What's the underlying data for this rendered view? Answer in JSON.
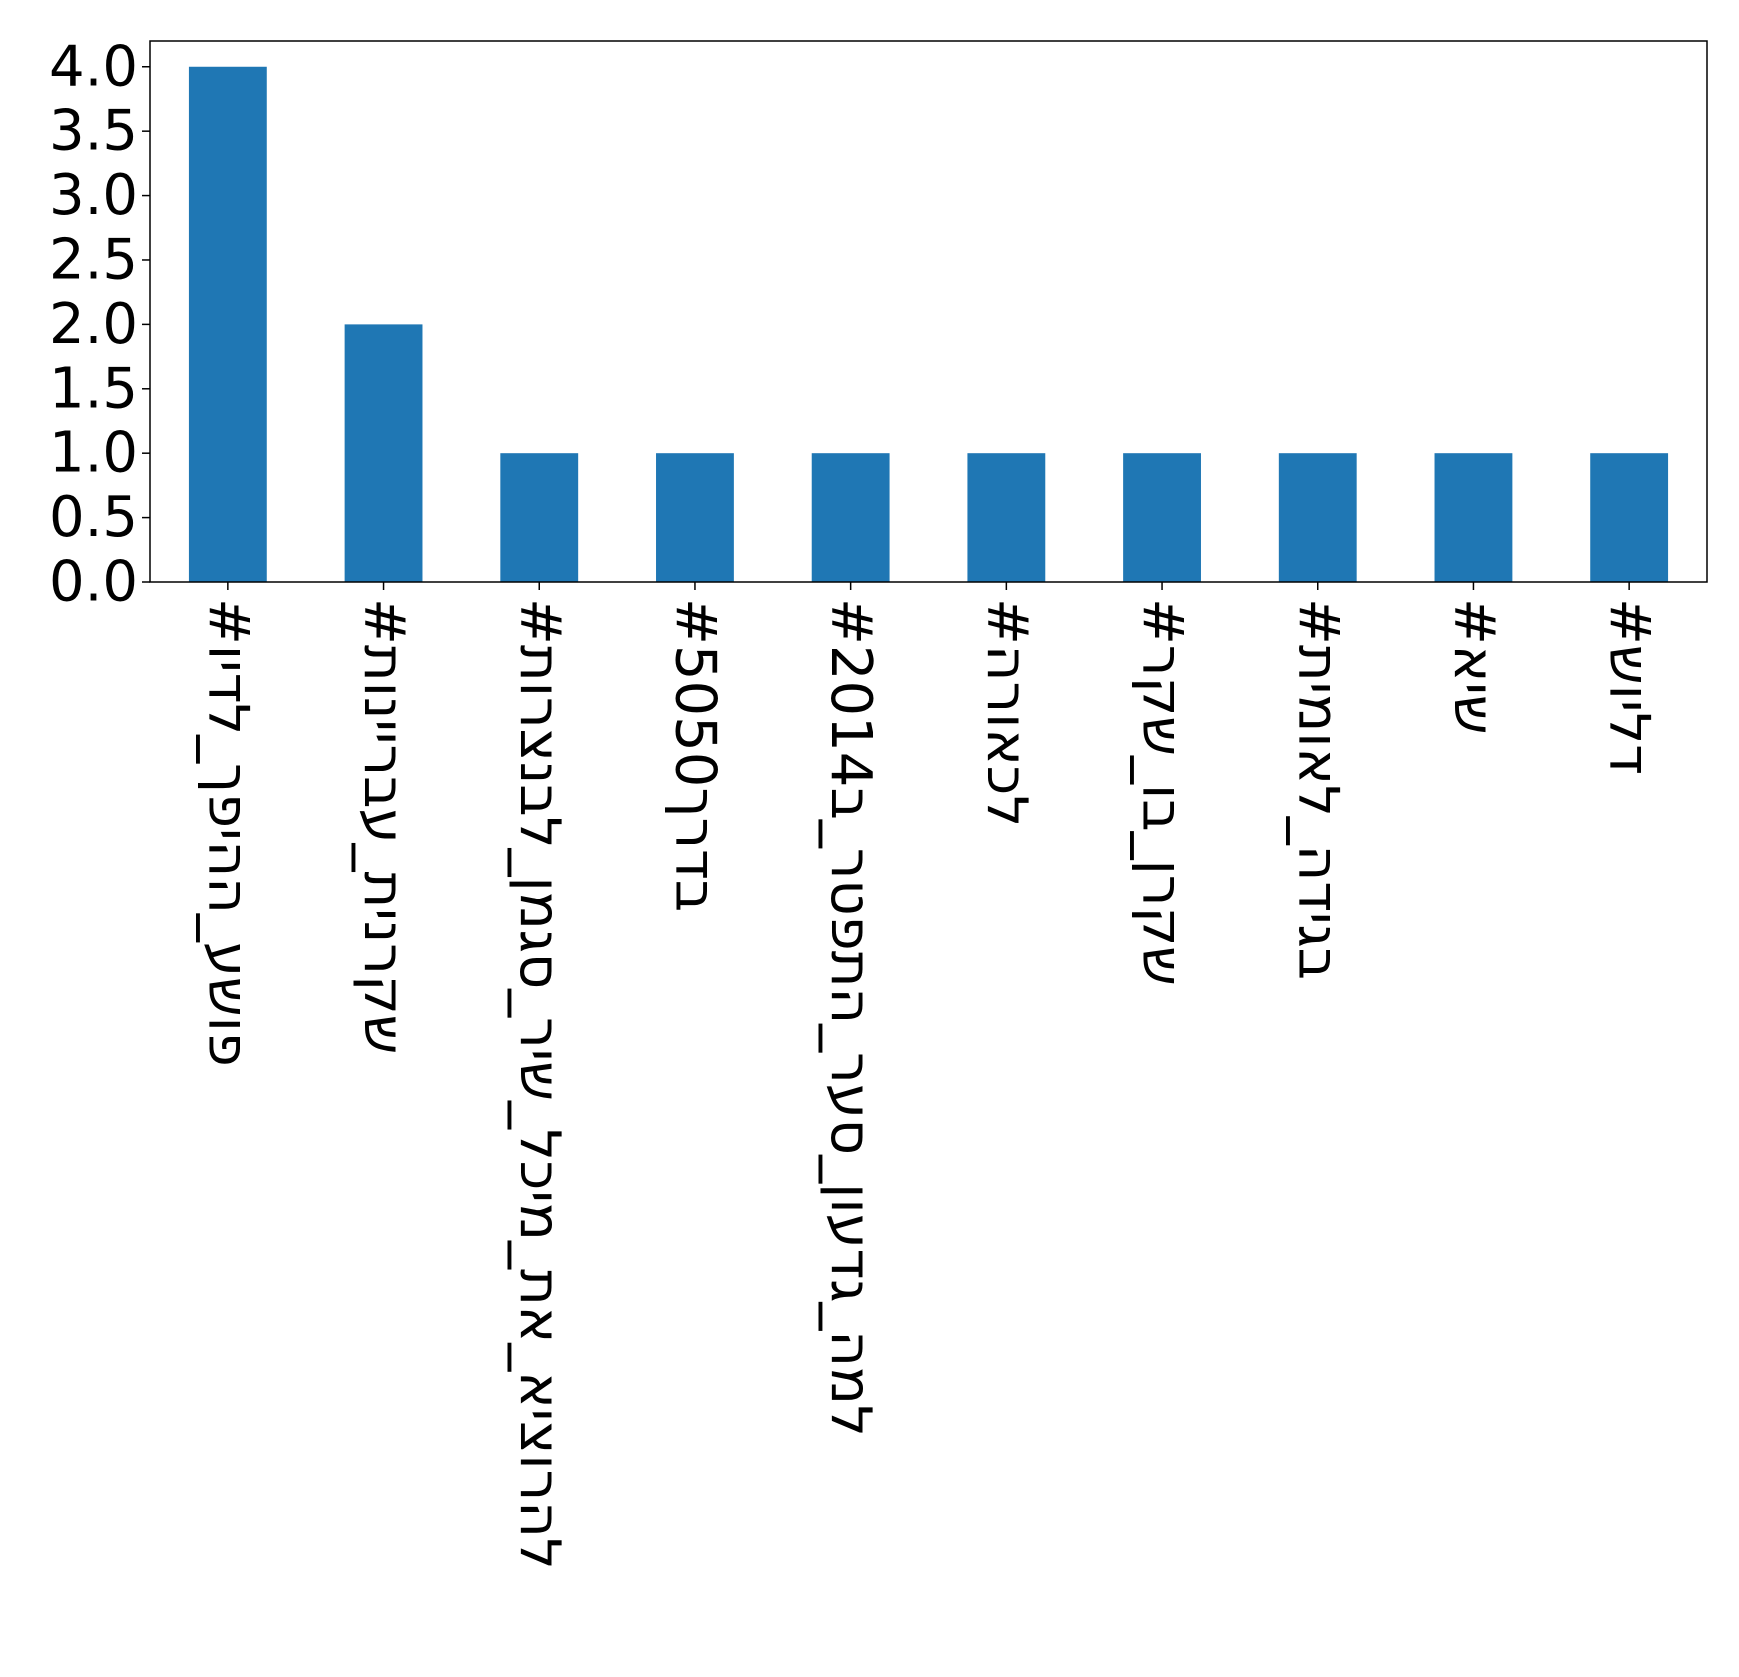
{
  "chart_data": {
    "type": "bar",
    "categories": [
      "#פושע_ההיפך_לדיו",
      "#שקרנית_עבריינות",
      "#להרוציא_את_מיכל_שיר_סגמן_לבנצרות",
      "#בדרך5050",
      "#למה_גדעון_סער_התפטר_ב2014",
      "#לכאורה",
      "#שקרן_בו_שקר",
      "#בגידה_לאומית",
      "#שיא",
      "#דליוש"
    ],
    "values": [
      4,
      2,
      1,
      1,
      1,
      1,
      1,
      1,
      1,
      1
    ],
    "yticks": [
      "0.0",
      "0.5",
      "1.0",
      "1.5",
      "2.0",
      "2.5",
      "3.0",
      "3.5",
      "4.0"
    ],
    "ylim": [
      0,
      4.2
    ],
    "title": "",
    "xlabel": "",
    "ylabel": "",
    "grid": false,
    "bar_color": "#1f77b4"
  }
}
